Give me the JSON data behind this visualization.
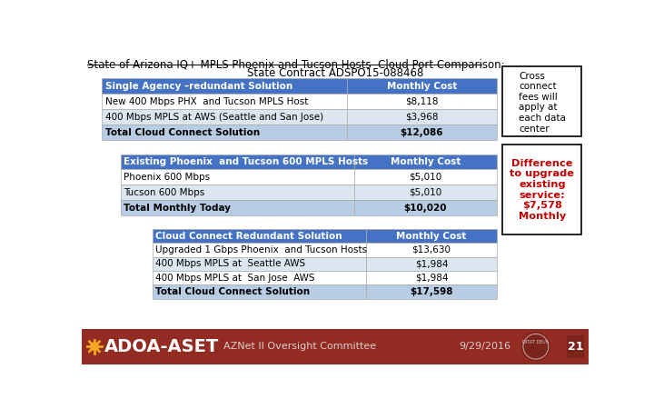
{
  "title_line1": "State of Arizona IQ+ MPLS Phoenix and Tucson Hosts  Cloud Port Comparison:",
  "title_line2": "State Contract ADSPO15-088468",
  "bg_color": "#ffffff",
  "table1_header": [
    "Single Agency –redundant Solution",
    "Monthly Cost"
  ],
  "table1_rows": [
    [
      "New 400 Mbps PHX  and Tucson MPLS Host",
      "$8,118"
    ],
    [
      "400 Mbps MPLS at AWS (Seattle and San Jose)",
      "$3,968"
    ],
    [
      "Total Cloud Connect Solution",
      "$12,086"
    ]
  ],
  "table2_header": [
    "Existing Phoenix  and Tucson 600 MPLS Hosts",
    "Monthly Cost"
  ],
  "table2_rows": [
    [
      "Phoenix 600 Mbps",
      "$5,010"
    ],
    [
      "Tucson 600 Mbps",
      "$5,010"
    ],
    [
      "Total Monthly Today",
      "$10,020"
    ]
  ],
  "table3_header": [
    "Cloud Connect Redundant Solution",
    "Monthly Cost"
  ],
  "table3_rows": [
    [
      "Upgraded 1 Gbps Phoenix  and Tucson Hosts",
      "$13,630"
    ],
    [
      "400 Mbps MPLS at  Seattle AWS",
      "$1,984"
    ],
    [
      "400 Mbps MPLS at  San Jose  AWS",
      "$1,984"
    ],
    [
      "Total Cloud Connect Solution",
      "$17,598"
    ]
  ],
  "header_bg": "#4472C4",
  "header_fg": "#ffffff",
  "row_bg_light": "#DCE6F1",
  "row_bg_white": "#ffffff",
  "total_row_bg": "#B8CCE4",
  "cross_connect_text": "Cross\nconnect\nfees will\napply at\neach data\ncenter",
  "diff_text": "Difference\nto upgrade\nexisting\nservice:\n$7,578\nMonthly",
  "diff_color": "#C00000",
  "footer_bg": "#922B21",
  "footer_text1": "ADOA-ASET",
  "footer_text2": "AZNet II Oversight Committee",
  "footer_text3": "9/29/2016",
  "footer_text4": "21"
}
